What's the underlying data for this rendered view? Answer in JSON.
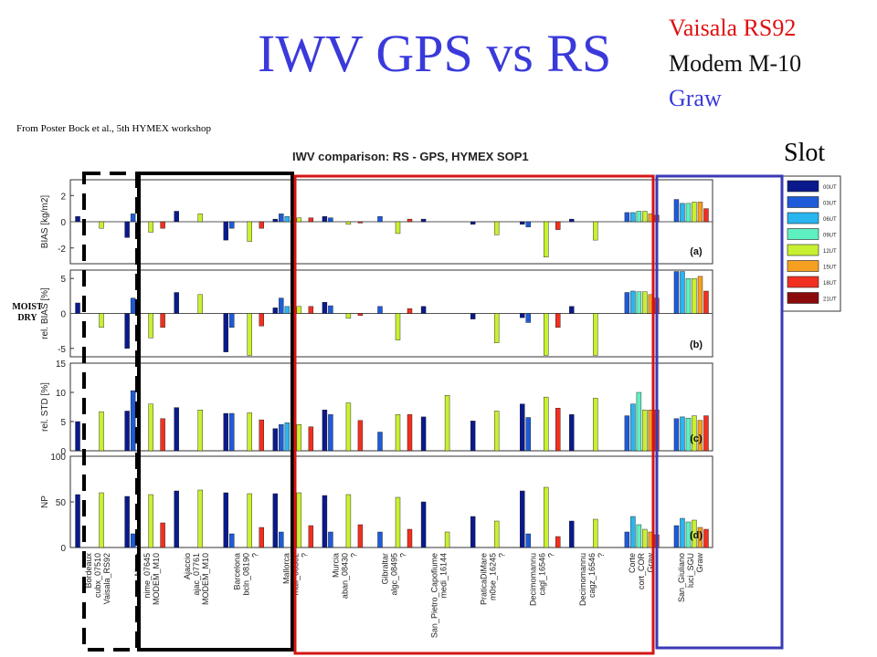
{
  "slide": {
    "title": "IWV GPS vs RS",
    "legend_items": [
      {
        "label": "Vaisala RS92",
        "color": "#e01010"
      },
      {
        "label": "Modem M-10",
        "color": "#111111"
      },
      {
        "label": "Graw",
        "color": "#3a3adb"
      }
    ],
    "credit": "From Poster Bock et al., 5th HYMEX workshop",
    "slot_label": "Slot",
    "moist_label": "MOIST",
    "dry_label": "DRY"
  },
  "chart_data": {
    "type": "bar",
    "title": "IWV comparison: RS - GPS, HYMEX SOP1",
    "slots": [
      "00UT",
      "03UT",
      "06UT",
      "09UT",
      "12UT",
      "15UT",
      "18UT",
      "21UT"
    ],
    "slot_colors": [
      "#0a1a8c",
      "#1e5bd8",
      "#29b5f0",
      "#5ef0c0",
      "#c8f032",
      "#f5a020",
      "#f03020",
      "#8b0a0a"
    ],
    "stations": [
      [
        "Bordeaux",
        "cubx_07510",
        "Vaisala_RS92"
      ],
      [
        "Nimes",
        "nime_07645",
        "MODEM_M10"
      ],
      [
        "Ajaccio",
        "ajac_07761",
        "MODEM_M10"
      ],
      [
        "Barcelona",
        "bcln_08190",
        "?"
      ],
      [
        "Mallorca",
        "mall_08302",
        "?"
      ],
      [
        "Murcia",
        "aban_08430",
        "?"
      ],
      [
        "Gibraltar",
        "algc_08495",
        "?"
      ],
      [
        "San_Pietro_Capofiume",
        "medi_16144",
        ""
      ],
      [
        "PraticaDiMare",
        "m0se_16245",
        "?"
      ],
      [
        "Decimomannu",
        "cagl_16546",
        "?"
      ],
      [
        "Decimomannu",
        "cagz_16546",
        "?"
      ],
      [
        "Corte",
        "cort_COR",
        "Graw"
      ],
      [
        "San_Giuliano",
        "luci_SGU",
        "Graw"
      ]
    ],
    "panels": [
      {
        "ylabel": "BIAS [kg/m2]",
        "tag": "(a)",
        "ylim": [
          -3.2,
          3.2
        ],
        "yticks": [
          -2,
          0,
          2
        ],
        "values": [
          [
            0.4,
            null,
            null,
            null,
            -0.5,
            null,
            null,
            null
          ],
          [
            -1.2,
            0.6,
            null,
            null,
            -0.8,
            null,
            -0.5,
            null
          ],
          [
            0.8,
            null,
            null,
            null,
            0.6,
            null,
            null,
            null
          ],
          [
            -1.4,
            -0.5,
            null,
            null,
            -1.5,
            null,
            -0.5,
            null
          ],
          [
            0.2,
            0.6,
            0.4,
            null,
            0.3,
            null,
            0.3,
            null
          ],
          [
            0.4,
            0.3,
            null,
            null,
            -0.2,
            null,
            -0.1,
            null
          ],
          [
            null,
            0.4,
            null,
            null,
            -0.9,
            null,
            0.2,
            null
          ],
          [
            0.2,
            null,
            null,
            null,
            null,
            null,
            null,
            null
          ],
          [
            -0.2,
            null,
            null,
            null,
            -1.0,
            null,
            null,
            null
          ],
          [
            -0.2,
            -0.4,
            null,
            null,
            -2.7,
            null,
            -0.6,
            null
          ],
          [
            0.2,
            null,
            null,
            null,
            -1.4,
            null,
            null,
            null
          ],
          [
            null,
            0.7,
            0.7,
            0.8,
            0.8,
            0.6,
            0.5,
            null
          ],
          [
            null,
            1.7,
            1.4,
            1.4,
            1.5,
            1.5,
            1.0,
            null
          ]
        ]
      },
      {
        "ylabel": "rel. BIAS [%]",
        "tag": "(b)",
        "ylim": [
          -6.2,
          6.2
        ],
        "yticks": [
          -5,
          0,
          5
        ],
        "values": [
          [
            1.5,
            null,
            null,
            null,
            -2.0,
            null,
            null,
            null
          ],
          [
            -5.0,
            2.2,
            null,
            null,
            -3.5,
            null,
            -2.0,
            null
          ],
          [
            3.0,
            null,
            null,
            null,
            2.7,
            null,
            null,
            null
          ],
          [
            -5.5,
            -2.0,
            null,
            null,
            -6.0,
            null,
            -1.8,
            null
          ],
          [
            0.8,
            2.2,
            1.0,
            null,
            1.0,
            null,
            1.0,
            null
          ],
          [
            1.6,
            1.1,
            null,
            null,
            -0.7,
            null,
            -0.3,
            null
          ],
          [
            null,
            1.0,
            null,
            null,
            -3.8,
            null,
            0.7,
            null
          ],
          [
            1.0,
            null,
            null,
            null,
            null,
            null,
            null,
            null
          ],
          [
            -0.8,
            null,
            null,
            null,
            -4.2,
            null,
            null,
            null
          ],
          [
            -0.6,
            -1.3,
            null,
            null,
            -6.0,
            null,
            -2.0,
            null
          ],
          [
            1.0,
            null,
            null,
            null,
            -6.0,
            null,
            null,
            null
          ],
          [
            null,
            3.0,
            3.2,
            3.1,
            3.1,
            2.7,
            2.2,
            null
          ],
          [
            null,
            6.0,
            6.0,
            5.0,
            5.0,
            5.3,
            3.2,
            null
          ]
        ]
      },
      {
        "ylabel": "rel. STD [%]",
        "tag": "(c)",
        "ylim": [
          0,
          15
        ],
        "yticks": [
          0,
          5,
          10,
          15
        ],
        "values": [
          [
            5.0,
            null,
            null,
            null,
            6.7,
            null,
            null,
            null
          ],
          [
            6.8,
            10.3,
            null,
            null,
            8.0,
            null,
            5.5,
            null
          ],
          [
            7.4,
            null,
            null,
            null,
            7.0,
            null,
            null,
            null
          ],
          [
            6.4,
            6.4,
            null,
            null,
            6.5,
            null,
            5.3,
            null
          ],
          [
            3.8,
            4.5,
            4.8,
            null,
            4.5,
            null,
            4.1,
            null
          ],
          [
            7.0,
            6.2,
            null,
            null,
            8.2,
            null,
            5.2,
            null
          ],
          [
            null,
            3.2,
            null,
            null,
            6.2,
            null,
            6.2,
            null
          ],
          [
            5.8,
            null,
            null,
            null,
            9.5,
            null,
            null,
            null
          ],
          [
            5.1,
            null,
            null,
            null,
            6.8,
            null,
            null,
            null
          ],
          [
            8.0,
            5.7,
            null,
            null,
            9.2,
            null,
            7.3,
            null
          ],
          [
            6.2,
            null,
            null,
            null,
            9.0,
            null,
            null,
            null
          ],
          [
            null,
            6.0,
            8.0,
            10.0,
            7.0,
            7.0,
            7.0,
            null
          ],
          [
            null,
            5.5,
            5.8,
            5.6,
            6.0,
            5.2,
            6.0,
            null
          ]
        ]
      },
      {
        "ylabel": "NP",
        "tag": "(d)",
        "ylim": [
          0,
          100
        ],
        "yticks": [
          0,
          50,
          100
        ],
        "values": [
          [
            58,
            null,
            null,
            null,
            60,
            null,
            null,
            null
          ],
          [
            56,
            15,
            null,
            null,
            58,
            null,
            27,
            null
          ],
          [
            62,
            null,
            null,
            null,
            63,
            null,
            null,
            null
          ],
          [
            60,
            15,
            null,
            null,
            59,
            null,
            22,
            null
          ],
          [
            59,
            17,
            null,
            null,
            60,
            null,
            24,
            null
          ],
          [
            57,
            17,
            null,
            null,
            58,
            null,
            25,
            null
          ],
          [
            null,
            17,
            null,
            null,
            55,
            null,
            20,
            null
          ],
          [
            50,
            null,
            null,
            null,
            17,
            null,
            null,
            null
          ],
          [
            34,
            null,
            null,
            null,
            29,
            null,
            null,
            null
          ],
          [
            62,
            15,
            null,
            null,
            66,
            null,
            12,
            null
          ],
          [
            29,
            null,
            null,
            null,
            31,
            null,
            null,
            null
          ],
          [
            null,
            17,
            34,
            25,
            20,
            17,
            14,
            null
          ],
          [
            null,
            24,
            32,
            28,
            30,
            22,
            20,
            null
          ]
        ]
      }
    ]
  }
}
